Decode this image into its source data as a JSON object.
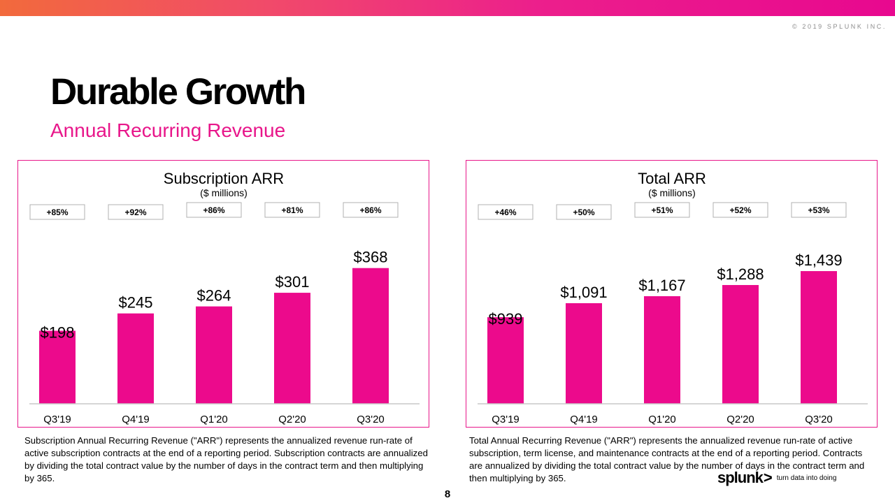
{
  "header": {
    "copyright": "© 2019 SPLUNK INC.",
    "title": "Durable Growth",
    "subtitle": "Annual Recurring Revenue"
  },
  "colors": {
    "accent": "#e8168a",
    "bar": "#ec0a8c"
  },
  "chart_data": [
    {
      "type": "bar",
      "title": "Subscription ARR",
      "subtitle": "($ millions)",
      "categories": [
        "Q3'19",
        "Q4'19",
        "Q1'20",
        "Q2'20",
        "Q3'20"
      ],
      "values": [
        198,
        245,
        264,
        301,
        368
      ],
      "value_labels": [
        "$198",
        "$245",
        "$264",
        "$301",
        "$368"
      ],
      "growth_labels": [
        "+85%",
        "+92%",
        "+86%",
        "+81%",
        "+86%"
      ],
      "ylim": [
        0,
        500
      ],
      "grid": false
    },
    {
      "type": "bar",
      "title": "Total ARR",
      "subtitle": "($ millions)",
      "categories": [
        "Q3'19",
        "Q4'19",
        "Q1'20",
        "Q2'20",
        "Q3'20"
      ],
      "values": [
        939,
        1091,
        1167,
        1288,
        1439
      ],
      "value_labels": [
        "$939",
        "$1,091",
        "$1,167",
        "$1,288",
        "$1,439"
      ],
      "growth_labels": [
        "+46%",
        "+50%",
        "+51%",
        "+52%",
        "+53%"
      ],
      "ylim": [
        0,
        2000
      ],
      "grid": false
    }
  ],
  "notes": {
    "left": "Subscription Annual Recurring Revenue (\"ARR\") represents the annualized revenue run-rate of active subscription contracts at the end of a reporting period. Subscription contracts are annualized by dividing the total contract value by the number of days in the contract term and then multiplying by 365.",
    "right": "Total Annual Recurring Revenue (\"ARR\") represents the annualized revenue run-rate of active subscription, term license, and maintenance contracts at the end of a reporting period. Contracts are annualized by dividing the total contract value by the number of days in the contract term and then multiplying by 365."
  },
  "footer": {
    "page_number": "8",
    "logo_word": "splunk",
    "logo_chevron": ">",
    "logo_tagline": "turn data into doing"
  }
}
